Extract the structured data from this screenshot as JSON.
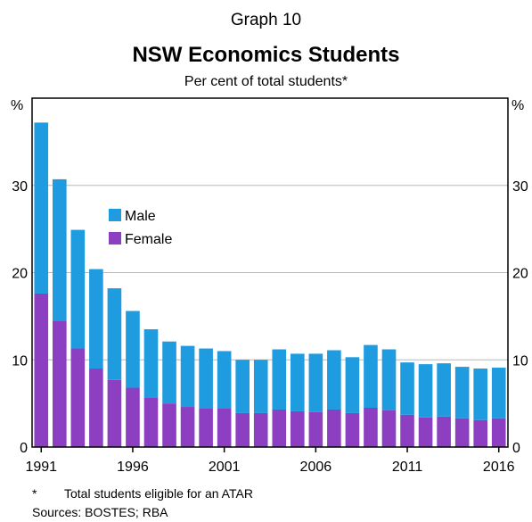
{
  "graph_number": "Graph 10",
  "chart_data": {
    "type": "bar",
    "stacked": true,
    "title": "NSW Economics Students",
    "subtitle": "Per cent of total students*",
    "ylabel_left": "%",
    "ylabel_right": "%",
    "ylim": [
      0,
      40
    ],
    "yticks": [
      0,
      10,
      20,
      30
    ],
    "x": [
      1991,
      1992,
      1993,
      1994,
      1995,
      1996,
      1997,
      1998,
      1999,
      2000,
      2001,
      2002,
      2003,
      2004,
      2005,
      2006,
      2007,
      2008,
      2009,
      2010,
      2011,
      2012,
      2013,
      2014,
      2015,
      2016
    ],
    "xtick_labels": [
      "1991",
      "1996",
      "2001",
      "2006",
      "2011",
      "2016"
    ],
    "grid": true,
    "legend_position": "upper-left",
    "series": [
      {
        "name": "Female",
        "color": "#8c3fc0",
        "values": [
          17.6,
          14.5,
          11.3,
          9.0,
          7.7,
          6.8,
          5.7,
          5.0,
          4.6,
          4.4,
          4.4,
          3.9,
          3.9,
          4.3,
          4.1,
          4.0,
          4.3,
          3.9,
          4.5,
          4.2,
          3.7,
          3.4,
          3.5,
          3.3,
          3.1,
          3.3
        ]
      },
      {
        "name": "Male",
        "color": "#1f9be0",
        "values": [
          19.6,
          16.2,
          13.6,
          11.4,
          10.5,
          8.8,
          7.8,
          7.1,
          7.0,
          6.9,
          6.6,
          6.1,
          6.1,
          6.9,
          6.6,
          6.7,
          6.8,
          6.4,
          7.2,
          7.0,
          6.0,
          6.1,
          6.1,
          5.9,
          5.9,
          5.8
        ]
      }
    ]
  },
  "footnotes": {
    "asterisk_mark": "*",
    "asterisk_text": "Total students eligible for an ATAR",
    "sources": "Sources:   BOSTES; RBA"
  }
}
